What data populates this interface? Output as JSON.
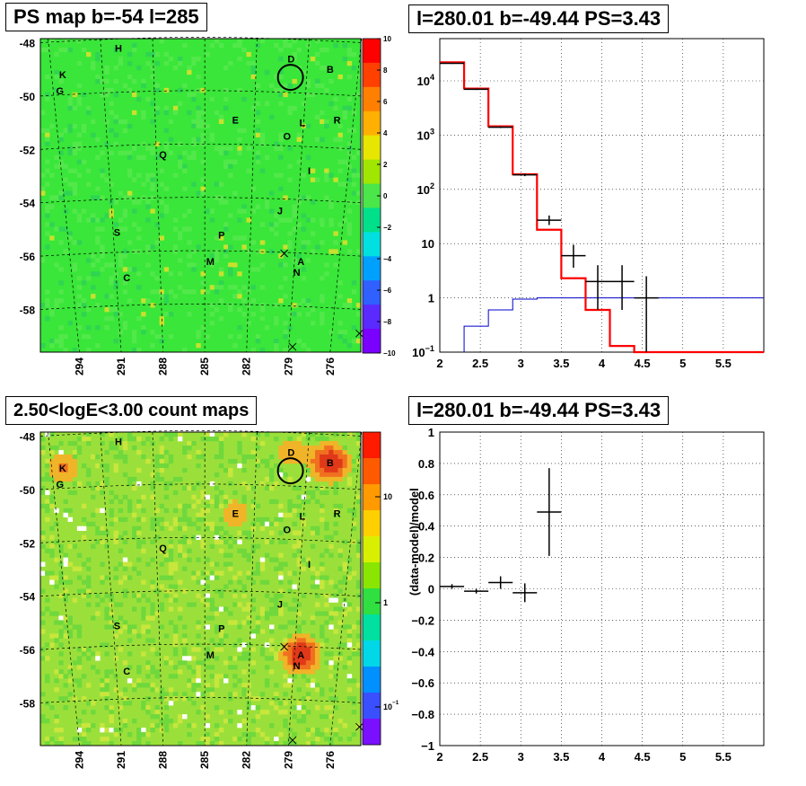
{
  "panels": {
    "top_left_title": "PS map b=-54 l=285",
    "top_right_title": "l=280.01 b=-49.44 PS=3.43",
    "bottom_left_title": "2.50<logE<3.00 count maps",
    "bottom_right_title": "l=280.01 b=-49.44 PS=3.43"
  },
  "colors": {
    "model": "#ff0000",
    "background_model": "#0000cc",
    "data": "#000000",
    "map_bg_top": "#39e639",
    "map_bg_bottom": "#9be03a"
  },
  "chart_data": [
    {
      "type": "heatmap",
      "title": "PS map b=-54 l=285",
      "x_ticks": [
        "294",
        "291",
        "288",
        "285",
        "282",
        "279",
        "276"
      ],
      "y_ticks": [
        "-48",
        "-50",
        "-52",
        "-54",
        "-56",
        "-58"
      ],
      "colorbar_ticks": [
        "10",
        "8",
        "6",
        "4",
        "2",
        "0",
        "−2",
        "−4",
        "−6",
        "−8",
        "−10"
      ],
      "sources": [
        {
          "label": "H",
          "l": 291.2,
          "b": -48.2
        },
        {
          "label": "K",
          "l": 295.2,
          "b": -49.2
        },
        {
          "label": "G",
          "l": 295.4,
          "b": -49.8
        },
        {
          "label": "D",
          "l": 278.8,
          "b": -48.6
        },
        {
          "label": "B",
          "l": 276.0,
          "b": -49.0
        },
        {
          "label": "E",
          "l": 282.8,
          "b": -50.9
        },
        {
          "label": "L",
          "l": 278.0,
          "b": -51.0
        },
        {
          "label": "R",
          "l": 275.5,
          "b": -50.9
        },
        {
          "label": "O",
          "l": 279.1,
          "b": -51.5
        },
        {
          "label": "Q",
          "l": 288.0,
          "b": -52.2
        },
        {
          "label": "I",
          "l": 277.5,
          "b": -52.8
        },
        {
          "label": "J",
          "l": 279.6,
          "b": -54.3
        },
        {
          "label": "S",
          "l": 291.3,
          "b": -55.1
        },
        {
          "label": "P",
          "l": 283.8,
          "b": -55.2
        },
        {
          "label": "M",
          "l": 284.6,
          "b": -56.2
        },
        {
          "label": "A",
          "l": 278.1,
          "b": -56.2
        },
        {
          "label": "N",
          "l": 278.4,
          "b": -56.6
        },
        {
          "label": "C",
          "l": 290.6,
          "b": -56.8
        }
      ]
    },
    {
      "type": "line",
      "title": "l=280.01 b=-49.44 PS=3.43",
      "x_ticks": [
        "2",
        "2.5",
        "3",
        "3.5",
        "4",
        "4.5",
        "5",
        "5.5"
      ],
      "y_ticks": [
        "10^{-1}",
        "1",
        "10",
        "10^2",
        "10^3",
        "10^4"
      ],
      "xlim": [
        2,
        6
      ],
      "ylim": [
        0.1,
        60000
      ],
      "yscale": "log",
      "grid": true,
      "series": [
        {
          "values_note": "total model",
          "bins": [
            [
              2.0,
              2.3,
              22000
            ],
            [
              2.3,
              2.6,
              7200
            ],
            [
              2.6,
              2.9,
              1450
            ],
            [
              2.9,
              3.2,
              190
            ],
            [
              3.2,
              3.5,
              18
            ],
            [
              3.5,
              3.8,
              2.3
            ],
            [
              3.8,
              4.1,
              0.6
            ],
            [
              4.1,
              4.4,
              0.13
            ],
            [
              4.4,
              6.0,
              0.1
            ]
          ]
        },
        {
          "values_note": "background",
          "bins": [
            [
              2.3,
              2.6,
              0.3
            ],
            [
              2.6,
              2.9,
              0.6
            ],
            [
              2.9,
              3.2,
              0.95
            ],
            [
              3.2,
              6.0,
              1.0
            ]
          ]
        }
      ],
      "points": [
        {
          "x": 2.15,
          "y": 21000,
          "xerr": 0.15,
          "ylo": 20500,
          "yhi": 21500
        },
        {
          "x": 2.45,
          "y": 7000,
          "xerr": 0.15,
          "ylo": 6800,
          "yhi": 7200
        },
        {
          "x": 2.75,
          "y": 1400,
          "xerr": 0.15,
          "ylo": 1350,
          "yhi": 1450
        },
        {
          "x": 3.05,
          "y": 185,
          "xerr": 0.15,
          "ylo": 175,
          "yhi": 195
        },
        {
          "x": 3.35,
          "y": 27,
          "xerr": 0.15,
          "ylo": 22,
          "yhi": 33
        },
        {
          "x": 3.65,
          "y": 6,
          "xerr": 0.15,
          "ylo": 3.6,
          "yhi": 9.5
        },
        {
          "x": 3.95,
          "y": 2,
          "xerr": 0.15,
          "ylo": 0.6,
          "yhi": 4.0
        },
        {
          "x": 4.25,
          "y": 2,
          "xerr": 0.15,
          "ylo": 0.6,
          "yhi": 4.0
        },
        {
          "x": 4.55,
          "y": 1,
          "xerr": 0.15,
          "ylo": 0.1,
          "yhi": 2.5
        }
      ]
    },
    {
      "type": "heatmap",
      "title": "2.50<logE<3.00 count maps",
      "x_ticks": [
        "294",
        "291",
        "288",
        "285",
        "282",
        "279",
        "276"
      ],
      "y_ticks": [
        "-48",
        "-50",
        "-52",
        "-54",
        "-56",
        "-58"
      ],
      "colorbar_ticks": [
        "10",
        "1",
        "10^{-1}"
      ],
      "hotspots": [
        {
          "label": "B",
          "strength": 1.0
        },
        {
          "label": "A",
          "strength": 1.0
        },
        {
          "label": "K",
          "strength": 0.5
        },
        {
          "label": "E",
          "strength": 0.4
        },
        {
          "label": "D",
          "strength": 0.4
        }
      ]
    },
    {
      "type": "scatter",
      "title": "l=280.01 b=-49.44 PS=3.43",
      "ylabel": "(data-model)/model",
      "x_ticks": [
        "2",
        "2.5",
        "3",
        "3.5",
        "4",
        "4.5",
        "5",
        "5.5"
      ],
      "y_ticks": [
        "1",
        "0.8",
        "0.6",
        "0.4",
        "0.2",
        "0",
        "−0.2",
        "−0.4",
        "−0.6",
        "−0.8",
        "−1"
      ],
      "xlim": [
        2,
        6
      ],
      "ylim": [
        -1,
        1
      ],
      "grid": true,
      "points": [
        {
          "x": 2.15,
          "y": 0.015,
          "xerr": 0.15,
          "yerr": 0.015
        },
        {
          "x": 2.45,
          "y": -0.015,
          "xerr": 0.15,
          "yerr": 0.015
        },
        {
          "x": 2.75,
          "y": 0.04,
          "xerr": 0.15,
          "yerr": 0.04
        },
        {
          "x": 3.05,
          "y": -0.025,
          "xerr": 0.15,
          "yerr": 0.06
        },
        {
          "x": 3.35,
          "y": 0.49,
          "xerr": 0.15,
          "yerr": 0.28
        }
      ]
    }
  ]
}
